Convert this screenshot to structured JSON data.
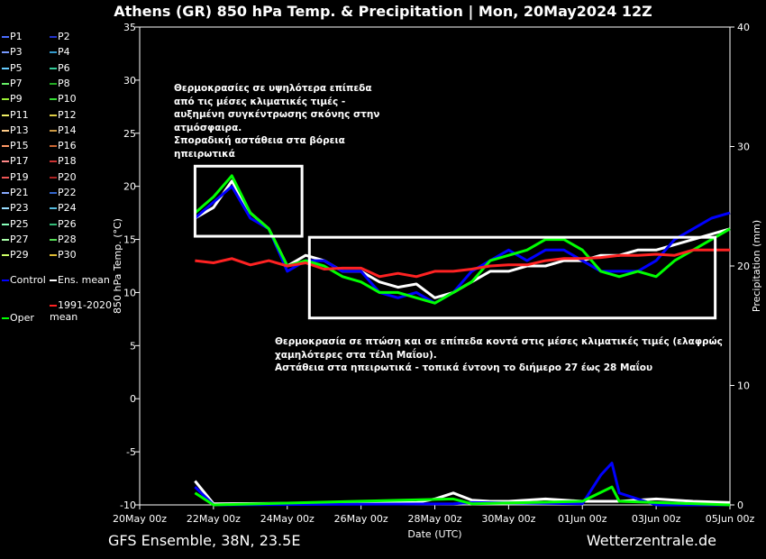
{
  "title": "Athens  (GR)  850 hPa Temp. & Precipitation | Mon, 20May2024 12Z",
  "footer": {
    "left": "GFS Ensemble, 38N, 23.5E",
    "right": "Wetterzentrale.de"
  },
  "notes": {
    "top": [
      "Θερμοκρασίες σε υψηλότερα επίπεδα",
      "από τις μέσες κλιματικές τιμές -",
      "αυξημένη συγκέντρωσης σκόνης στην",
      "ατμόσφαιρα.",
      "Σποραδική αστάθεια στα βόρεια",
      "ηπειρωτικά"
    ],
    "bottom": [
      "Θερμοκρασία σε πτώση και σε επίπεδα κοντά στις μέσες κλιματικές τιμές (ελαφρώς",
      "χαμηλότερες στα τέλη Μαΐου).",
      "Αστάθεια στα ηπειρωτικά - τοπικά έντονη το διήμερο 27 έως 28 Μαΐου"
    ]
  },
  "legend": [
    {
      "label": "P1",
      "color": "#4a6cff"
    },
    {
      "label": "P2",
      "color": "#2233cc"
    },
    {
      "label": "P3",
      "color": "#7799ff"
    },
    {
      "label": "P4",
      "color": "#3399cc"
    },
    {
      "label": "P5",
      "color": "#66ccff"
    },
    {
      "label": "P6",
      "color": "#33cc99"
    },
    {
      "label": "P7",
      "color": "#66ee66"
    },
    {
      "label": "P8",
      "color": "#22aa22"
    },
    {
      "label": "P9",
      "color": "#99ee33"
    },
    {
      "label": "P10",
      "color": "#33dd33"
    },
    {
      "label": "P11",
      "color": "#eeee66"
    },
    {
      "label": "P12",
      "color": "#ddcc44"
    },
    {
      "label": "P13",
      "color": "#ffcc88"
    },
    {
      "label": "P14",
      "color": "#cc9944"
    },
    {
      "label": "P15",
      "color": "#ff9966"
    },
    {
      "label": "P16",
      "color": "#cc6633"
    },
    {
      "label": "P17",
      "color": "#ff8888"
    },
    {
      "label": "P18",
      "color": "#cc3333"
    },
    {
      "label": "P19",
      "color": "#ee5555"
    },
    {
      "label": "P20",
      "color": "#aa2222"
    },
    {
      "label": "P21",
      "color": "#88aaff"
    },
    {
      "label": "P22",
      "color": "#3366cc"
    },
    {
      "label": "P23",
      "color": "#99ddff"
    },
    {
      "label": "P24",
      "color": "#55bbdd"
    },
    {
      "label": "P25",
      "color": "#88ffbb"
    },
    {
      "label": "P26",
      "color": "#33bb77"
    },
    {
      "label": "P27",
      "color": "#aaffaa"
    },
    {
      "label": "P28",
      "color": "#55dd55"
    },
    {
      "label": "P29",
      "color": "#ccff66"
    },
    {
      "label": "P30",
      "color": "#ddbb33"
    },
    {
      "label": "Control",
      "color": "#0000ff"
    },
    {
      "label": "Ens. mean",
      "color": "#ffffff"
    },
    {
      "label": "1991-2020 mean",
      "color": "#ff2222"
    },
    {
      "label": "Oper",
      "color": "#00ff00"
    }
  ],
  "chart_data": {
    "type": "line",
    "xlabel": "Date (UTC)",
    "ylabel": "850 hPa Temp. (°C)",
    "y2label": "Precipitation (mm)",
    "ylim": [
      -10,
      35
    ],
    "y2lim": [
      0,
      40
    ],
    "yticks": [
      -10,
      -5,
      0,
      5,
      10,
      15,
      20,
      25,
      30,
      35
    ],
    "y2ticks": [
      0,
      10,
      20,
      30,
      40
    ],
    "xlim_days": [
      0,
      16
    ],
    "xticks": [
      {
        "day": 0,
        "label": "20May 00z"
      },
      {
        "day": 2,
        "label": "22May 00z"
      },
      {
        "day": 4,
        "label": "24May 00z"
      },
      {
        "day": 6,
        "label": "26May 00z"
      },
      {
        "day": 8,
        "label": "28May 00z"
      },
      {
        "day": 10,
        "label": "30May 00z"
      },
      {
        "day": 12,
        "label": "01Jun 00z"
      },
      {
        "day": 14,
        "label": "03Jun 00z"
      },
      {
        "day": 16,
        "label": "05Jun 00z"
      }
    ],
    "temperature_series": [
      {
        "name": "Ens. mean",
        "color": "#ffffff",
        "points": [
          [
            1.5,
            17
          ],
          [
            2,
            18
          ],
          [
            2.5,
            20.5
          ],
          [
            3,
            17.5
          ],
          [
            3.5,
            16
          ],
          [
            4,
            12.5
          ],
          [
            4.5,
            13.5
          ],
          [
            5,
            13
          ],
          [
            5.5,
            12
          ],
          [
            6,
            12
          ],
          [
            6.5,
            11
          ],
          [
            7,
            10.5
          ],
          [
            7.5,
            10.8
          ],
          [
            8,
            9.5
          ],
          [
            8.5,
            10
          ],
          [
            9,
            11
          ],
          [
            9.5,
            12
          ],
          [
            10,
            12
          ],
          [
            10.5,
            12.5
          ],
          [
            11,
            12.5
          ],
          [
            11.5,
            13
          ],
          [
            12,
            13
          ],
          [
            12.5,
            13.5
          ],
          [
            13,
            13.5
          ],
          [
            13.5,
            14
          ],
          [
            14,
            14
          ],
          [
            14.5,
            14.5
          ],
          [
            15,
            15
          ],
          [
            15.5,
            15.5
          ],
          [
            16,
            16
          ]
        ]
      },
      {
        "name": "Control",
        "color": "#0000ff",
        "points": [
          [
            1.5,
            17
          ],
          [
            2,
            18.5
          ],
          [
            2.5,
            20
          ],
          [
            3,
            17
          ],
          [
            3.5,
            16
          ],
          [
            4,
            12
          ],
          [
            4.5,
            13
          ],
          [
            5,
            13
          ],
          [
            5.5,
            12
          ],
          [
            6,
            12
          ],
          [
            6.5,
            10
          ],
          [
            7,
            9.5
          ],
          [
            7.5,
            10
          ],
          [
            8,
            9
          ],
          [
            8.5,
            10
          ],
          [
            9,
            12
          ],
          [
            9.5,
            13
          ],
          [
            10,
            14
          ],
          [
            10.5,
            13
          ],
          [
            11,
            14
          ],
          [
            11.5,
            14
          ],
          [
            12,
            13
          ],
          [
            12.5,
            12
          ],
          [
            13,
            12
          ],
          [
            13.5,
            12
          ],
          [
            14,
            13
          ],
          [
            14.5,
            15
          ],
          [
            15,
            16
          ],
          [
            15.5,
            17
          ],
          [
            16,
            17.5
          ]
        ]
      },
      {
        "name": "Oper",
        "color": "#00ff00",
        "points": [
          [
            1.5,
            17.5
          ],
          [
            2,
            19
          ],
          [
            2.5,
            21
          ],
          [
            3,
            17.5
          ],
          [
            3.5,
            16
          ],
          [
            4,
            12.5
          ],
          [
            4.5,
            13
          ],
          [
            5,
            12.5
          ],
          [
            5.5,
            11.5
          ],
          [
            6,
            11
          ],
          [
            6.5,
            10
          ],
          [
            7,
            10
          ],
          [
            7.5,
            9.5
          ],
          [
            8,
            9
          ],
          [
            8.5,
            10
          ],
          [
            9,
            11
          ],
          [
            9.5,
            13
          ],
          [
            10,
            13.5
          ],
          [
            10.5,
            14
          ],
          [
            11,
            15
          ],
          [
            11.5,
            15
          ],
          [
            12,
            14
          ],
          [
            12.5,
            12
          ],
          [
            13,
            11.5
          ],
          [
            13.5,
            12
          ],
          [
            14,
            11.5
          ],
          [
            14.5,
            13
          ],
          [
            15,
            14
          ],
          [
            15.5,
            15
          ],
          [
            16,
            16
          ]
        ]
      },
      {
        "name": "1991-2020 mean",
        "color": "#ff2222",
        "points": [
          [
            1.5,
            13
          ],
          [
            2,
            12.8
          ],
          [
            2.5,
            13.2
          ],
          [
            3,
            12.6
          ],
          [
            3.5,
            13
          ],
          [
            4,
            12.5
          ],
          [
            4.5,
            12.8
          ],
          [
            5,
            12.2
          ],
          [
            5.5,
            12.3
          ],
          [
            6,
            12.3
          ],
          [
            6.5,
            11.5
          ],
          [
            7,
            11.8
          ],
          [
            7.5,
            11.5
          ],
          [
            8,
            12
          ],
          [
            8.5,
            12
          ],
          [
            9,
            12.2
          ],
          [
            9.5,
            12.5
          ],
          [
            10,
            12.6
          ],
          [
            10.5,
            12.6
          ],
          [
            11,
            13
          ],
          [
            11.5,
            13.2
          ],
          [
            12,
            13.2
          ],
          [
            12.5,
            13.3
          ],
          [
            13,
            13.5
          ],
          [
            13.5,
            13.5
          ],
          [
            14,
            13.6
          ],
          [
            14.5,
            13.5
          ],
          [
            15,
            14
          ],
          [
            15.5,
            14
          ],
          [
            16,
            14
          ]
        ]
      }
    ],
    "precipitation_series": [
      {
        "name": "Ens. mean",
        "color": "#ffffff",
        "points": [
          [
            1.5,
            2
          ],
          [
            2,
            0.1
          ],
          [
            7.5,
            0.2
          ],
          [
            8,
            0.5
          ],
          [
            8.5,
            1
          ],
          [
            9,
            0.4
          ],
          [
            9.5,
            0.3
          ],
          [
            10,
            0.3
          ],
          [
            11,
            0.5
          ],
          [
            12,
            0.3
          ],
          [
            13,
            0.3
          ],
          [
            14,
            0.5
          ],
          [
            15,
            0.3
          ],
          [
            16,
            0.2
          ]
        ]
      },
      {
        "name": "Control",
        "color": "#0000ff",
        "points": [
          [
            1.5,
            1.5
          ],
          [
            2,
            0
          ],
          [
            8.5,
            0.1
          ],
          [
            9,
            0.2
          ],
          [
            12,
            0.1
          ],
          [
            12.5,
            2.5
          ],
          [
            12.8,
            3.5
          ],
          [
            13,
            1
          ],
          [
            14,
            0
          ],
          [
            16,
            0
          ]
        ]
      },
      {
        "name": "Oper",
        "color": "#00ff00",
        "points": [
          [
            1.5,
            1
          ],
          [
            2,
            0
          ],
          [
            8.5,
            0.5
          ],
          [
            9,
            0.1
          ],
          [
            12,
            0.3
          ],
          [
            12.8,
            1.5
          ],
          [
            13,
            0.3
          ],
          [
            16,
            0
          ]
        ]
      }
    ]
  },
  "annotation_boxes": [
    {
      "x_days": [
        1.5,
        4.4
      ],
      "y_values": [
        15.3,
        21.9
      ]
    },
    {
      "x_days": [
        4.6,
        15.6
      ],
      "y_values": [
        7.6,
        15.2
      ]
    }
  ]
}
